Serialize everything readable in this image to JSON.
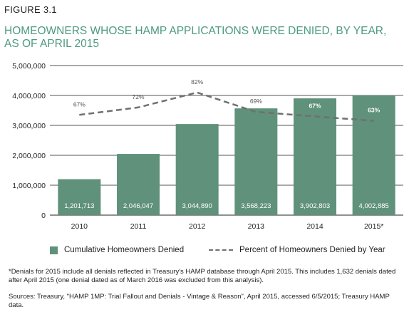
{
  "figure_label": "FIGURE 3.1",
  "title": "HOMEOWNERS WHOSE HAMP APPLICATIONS WERE DENIED, BY YEAR, AS OF APRIL 2015",
  "colors": {
    "bar": "#5f917b",
    "line": "#707070",
    "title": "#4e9a83",
    "grid": "#555555"
  },
  "chart_data": {
    "type": "bar",
    "categories": [
      "2010",
      "2011",
      "2012",
      "2013",
      "2014",
      "2015*"
    ],
    "ylim": [
      0,
      5000000
    ],
    "y_ticks": [
      "0",
      "1,000,000",
      "2,000,000",
      "3,000,000",
      "4,000,000",
      "5,000,000"
    ],
    "grid": true,
    "legend_position": "bottom",
    "series": [
      {
        "name": "Cumulative Homeowners Denied",
        "type": "bar",
        "values": [
          1201713,
          2046047,
          3044890,
          3568223,
          3902803,
          4002885
        ],
        "labels": [
          "1,201,713",
          "2,046,047",
          "3,044,890",
          "3,568,223",
          "3,902,803",
          "4,002,885"
        ]
      },
      {
        "name": "Percent of Homeowners Denied by Year",
        "type": "line",
        "style": "dashed",
        "values_pct": [
          67,
          72,
          82,
          69,
          67,
          63
        ],
        "labels": [
          "67%",
          "72%",
          "82%",
          "69%",
          "67%",
          "63%"
        ],
        "plotted_at": [
          3350000,
          3600000,
          4100000,
          3450000,
          3300000,
          3150000
        ]
      }
    ]
  },
  "notes": {
    "footnote": "*Denials for 2015 include all denials reflected in Treasury's HAMP database through April 2015. This includes 1,632 denials dated after April 2015 (one denial dated as of March 2016 was excluded from this analysis).",
    "sources": "Sources: Treasury, \"HAMP 1MP: Trial Fallout and Denials - Vintage & Reason\", April 2015, accessed 6/5/2015; Treasury HAMP data."
  }
}
